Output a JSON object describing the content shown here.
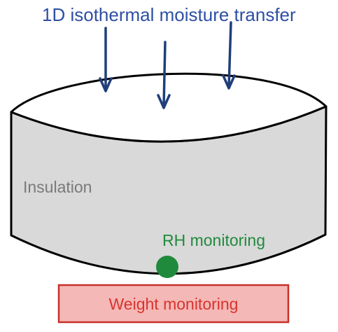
{
  "diagram": {
    "title": "1D isothermal moisture transfer",
    "insulation_label": "Insulation",
    "rh_label": "RH monitoring",
    "weight_label": "Weight monitoring"
  },
  "colors": {
    "title": "#2e4fa3",
    "arrow": "#1f3e7a",
    "cylinder_fill": "#d9d9d9",
    "top_face_fill": "#ffffff",
    "outline": "#000000",
    "insulation_text": "#7a7a7a",
    "rh_text": "#1f8a3c",
    "rh_dot": "#1f8a3c",
    "weight_fill": "#f4b8b6",
    "weight_border": "#c8302b",
    "weight_text": "#d9332e"
  },
  "icons": {
    "arrows": "down-arrow-icon",
    "rh_sensor": "sensor-dot-icon"
  }
}
